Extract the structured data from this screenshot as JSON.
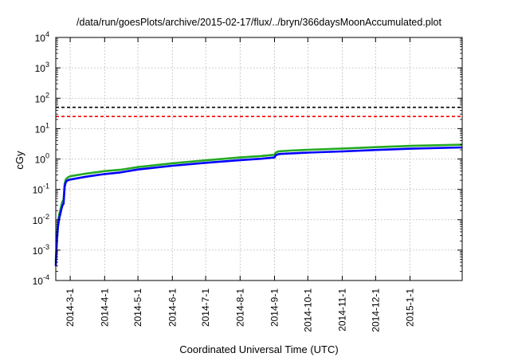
{
  "chart_data": {
    "type": "line",
    "title": "/data/run/goesPlots/archive/2015-02-17/flux/../bryn/366daysMoonAccumulated.plot",
    "xlabel": "Coordinated Universal Time (UTC)",
    "ylabel": "cGy",
    "y_scale": "log",
    "ylim": [
      0.0001,
      10000
    ],
    "y_ticks": [
      {
        "value": 0.0001,
        "base": "10",
        "exp": "-4"
      },
      {
        "value": 0.001,
        "base": "10",
        "exp": "-3"
      },
      {
        "value": 0.01,
        "base": "10",
        "exp": "-2"
      },
      {
        "value": 0.1,
        "base": "10",
        "exp": "-1"
      },
      {
        "value": 1,
        "base": "10",
        "exp": "0"
      },
      {
        "value": 10,
        "base": "10",
        "exp": "1"
      },
      {
        "value": 100,
        "base": "10",
        "exp": "2"
      },
      {
        "value": 1000,
        "base": "10",
        "exp": "3"
      },
      {
        "value": 10000,
        "base": "10",
        "exp": "4"
      }
    ],
    "xlim": [
      "2014-02-16",
      "2015-02-17"
    ],
    "x_ticks": [
      {
        "date": "2014-03-01",
        "label": "2014-3-1"
      },
      {
        "date": "2014-04-01",
        "label": "2014-4-1"
      },
      {
        "date": "2014-05-01",
        "label": "2014-5-1"
      },
      {
        "date": "2014-06-01",
        "label": "2014-6-1"
      },
      {
        "date": "2014-07-01",
        "label": "2014-7-1"
      },
      {
        "date": "2014-08-01",
        "label": "2014-8-1"
      },
      {
        "date": "2014-09-01",
        "label": "2014-9-1"
      },
      {
        "date": "2014-10-01",
        "label": "2014-10-1"
      },
      {
        "date": "2014-11-01",
        "label": "2014-11-1"
      },
      {
        "date": "2014-12-01",
        "label": "2014-12-1"
      },
      {
        "date": "2015-01-01",
        "label": "2015-1-1"
      }
    ],
    "grid": true,
    "legend": "none",
    "reference_lines": [
      {
        "y": 50,
        "color": "#000000",
        "style": "dashed"
      },
      {
        "y": 25,
        "color": "#ff0000",
        "style": "dashed"
      }
    ],
    "series": [
      {
        "color": "#22aa22",
        "x": [
          "2014-02-16",
          "2014-02-17",
          "2014-02-18",
          "2014-02-19",
          "2014-02-20",
          "2014-02-21",
          "2014-02-22",
          "2014-02-23",
          "2014-02-24",
          "2014-02-25",
          "2014-02-26",
          "2014-02-27",
          "2014-03-01",
          "2014-03-15",
          "2014-04-01",
          "2014-04-15",
          "2014-05-01",
          "2014-06-01",
          "2014-07-01",
          "2014-08-01",
          "2014-08-20",
          "2014-09-01",
          "2014-09-02",
          "2014-09-04",
          "2014-09-06",
          "2014-09-15",
          "2014-10-01",
          "2014-11-01",
          "2014-12-01",
          "2015-01-01",
          "2015-02-17"
        ],
        "y": [
          0.0004,
          0.003,
          0.008,
          0.015,
          0.02,
          0.03,
          0.04,
          0.045,
          0.15,
          0.21,
          0.23,
          0.25,
          0.27,
          0.33,
          0.4,
          0.44,
          0.54,
          0.72,
          0.9,
          1.12,
          1.25,
          1.38,
          1.6,
          1.75,
          1.8,
          1.88,
          2.0,
          2.2,
          2.45,
          2.7,
          2.95
        ]
      },
      {
        "color": "#0000ff",
        "x": [
          "2014-02-16",
          "2014-02-17",
          "2014-02-18",
          "2014-02-19",
          "2014-02-20",
          "2014-02-21",
          "2014-02-22",
          "2014-02-23",
          "2014-02-24",
          "2014-02-25",
          "2014-02-26",
          "2014-02-27",
          "2014-03-01",
          "2014-03-15",
          "2014-04-01",
          "2014-04-15",
          "2014-05-01",
          "2014-06-01",
          "2014-07-01",
          "2014-08-01",
          "2014-08-20",
          "2014-09-01",
          "2014-09-02",
          "2014-09-04",
          "2014-09-06",
          "2014-09-15",
          "2014-10-01",
          "2014-11-01",
          "2014-12-01",
          "2015-01-01",
          "2015-02-17"
        ],
        "y": [
          0.0003,
          0.002,
          0.006,
          0.011,
          0.015,
          0.022,
          0.03,
          0.034,
          0.12,
          0.17,
          0.19,
          0.2,
          0.21,
          0.26,
          0.32,
          0.36,
          0.45,
          0.6,
          0.75,
          0.92,
          1.02,
          1.12,
          1.32,
          1.42,
          1.46,
          1.52,
          1.62,
          1.78,
          1.98,
          2.18,
          2.4
        ]
      }
    ]
  }
}
